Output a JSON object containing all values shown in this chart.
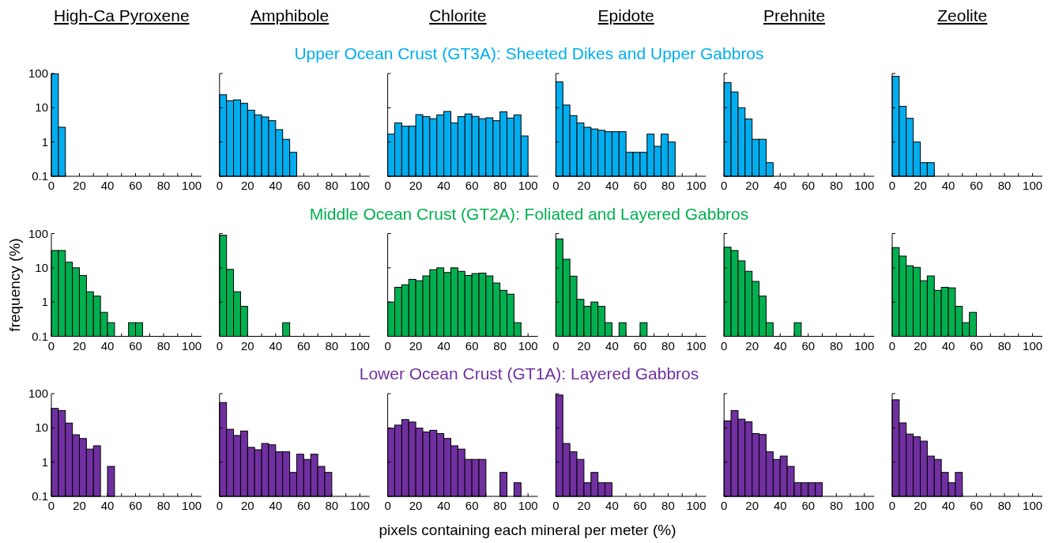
{
  "chart_data": [
    {
      "type": "other",
      "title": "Upper Ocean Crust (GT3A): Sheeted Dikes and Upper Gabbros",
      "color": "#00aeef"
    },
    {
      "type": "histogram",
      "title": "High-Ca Pyroxene",
      "color": "#00aeef",
      "bins": [
        0,
        5,
        10,
        15,
        20,
        25,
        30,
        35,
        40,
        45,
        50,
        55,
        60,
        65,
        70,
        75,
        80,
        85,
        90,
        95,
        100
      ],
      "values": [
        98,
        2.7,
        null,
        null,
        null,
        null,
        null,
        null,
        null,
        null,
        null,
        null,
        null,
        null,
        null,
        null,
        null,
        null,
        null,
        null
      ],
      "xlim": [
        0,
        107
      ],
      "xticks": [
        0,
        {
          "value": 10,
          "label": null
        },
        20,
        {
          "value": 30,
          "label": null
        },
        40,
        {
          "value": 50,
          "label": null
        },
        60,
        {
          "value": 70,
          "label": null
        },
        80,
        {
          "value": 90,
          "label": null
        },
        100
      ],
      "ylim": [
        0.1,
        100
      ],
      "yticks": [
        0.1,
        1,
        10,
        100
      ],
      "log": "y"
    },
    {
      "type": "histogram",
      "title": "Amphibole",
      "color": "#00aeef",
      "bins": [
        0,
        5,
        10,
        15,
        20,
        25,
        30,
        35,
        40,
        45,
        50,
        55,
        60,
        65,
        70,
        75,
        80,
        85,
        90,
        95,
        100
      ],
      "values": [
        24,
        16,
        17,
        13.5,
        8.5,
        6.2,
        5.4,
        4.2,
        2.3,
        1.2,
        0.5,
        null,
        null,
        null,
        null,
        null,
        null,
        null,
        null,
        null
      ],
      "xlim": [
        0,
        107
      ],
      "xticks": [
        0,
        {
          "value": 10,
          "label": null
        },
        20,
        {
          "value": 30,
          "label": null
        },
        40,
        {
          "value": 50,
          "label": null
        },
        60,
        {
          "value": 70,
          "label": null
        },
        80,
        {
          "value": 90,
          "label": null
        },
        100
      ],
      "ylim": [
        0.1,
        100
      ],
      "yticks": [
        0.1,
        1,
        10,
        100
      ],
      "log": "y",
      "tick_labels": "x"
    },
    {
      "type": "histogram",
      "title": "Chlorite",
      "color": "#00aeef",
      "bins": [
        0,
        5,
        10,
        15,
        20,
        25,
        30,
        35,
        40,
        45,
        50,
        55,
        60,
        65,
        70,
        75,
        80,
        85,
        90,
        95,
        100
      ],
      "values": [
        1.7,
        3.6,
        2.9,
        2.9,
        6.3,
        5.5,
        4.8,
        6.2,
        7.8,
        3.6,
        5.5,
        6.6,
        5.6,
        4.8,
        5.1,
        4.2,
        7.6,
        5,
        6.2,
        1.5
      ],
      "xlim": [
        0,
        107
      ],
      "xticks": [
        0,
        {
          "value": 10,
          "label": null
        },
        20,
        {
          "value": 30,
          "label": null
        },
        40,
        {
          "value": 50,
          "label": null
        },
        60,
        {
          "value": 70,
          "label": null
        },
        80,
        {
          "value": 90,
          "label": null
        },
        100
      ],
      "ylim": [
        0.1,
        100
      ],
      "yticks": [
        0.1,
        1,
        10,
        100
      ],
      "log": "y",
      "tick_labels": "x"
    },
    {
      "type": "histogram",
      "title": "Epidote",
      "color": "#00aeef",
      "bins": [
        0,
        5,
        10,
        15,
        20,
        25,
        30,
        35,
        40,
        45,
        50,
        55,
        60,
        65,
        70,
        75,
        80,
        85,
        90,
        95,
        100
      ],
      "values": [
        57,
        12,
        5.9,
        3.6,
        2.7,
        2.4,
        2.2,
        2,
        2,
        2,
        0.5,
        0.5,
        0.5,
        1.7,
        0.75,
        1.7,
        1,
        null,
        null,
        null
      ],
      "xlim": [
        0,
        107
      ],
      "xticks": [
        0,
        {
          "value": 10,
          "label": null
        },
        20,
        {
          "value": 30,
          "label": null
        },
        40,
        {
          "value": 50,
          "label": null
        },
        60,
        {
          "value": 70,
          "label": null
        },
        80,
        {
          "value": 90,
          "label": null
        },
        100
      ],
      "ylim": [
        0.1,
        100
      ],
      "yticks": [
        0.1,
        1,
        10,
        100
      ],
      "log": "y",
      "tick_labels": "x"
    },
    {
      "type": "histogram",
      "title": "Prehnite",
      "color": "#00aeef",
      "bins": [
        0,
        5,
        10,
        15,
        20,
        25,
        30,
        35,
        40,
        45,
        50,
        55,
        60,
        65,
        70,
        75,
        80,
        85,
        90,
        95,
        100
      ],
      "values": [
        54,
        29,
        10,
        4.7,
        1.2,
        1.2,
        0.25,
        null,
        null,
        null,
        null,
        null,
        null,
        null,
        null,
        null,
        null,
        null,
        null,
        null
      ],
      "xlim": [
        0,
        107
      ],
      "xticks": [
        0,
        {
          "value": 10,
          "label": null
        },
        20,
        {
          "value": 30,
          "label": null
        },
        40,
        {
          "value": 50,
          "label": null
        },
        60,
        {
          "value": 70,
          "label": null
        },
        80,
        {
          "value": 90,
          "label": null
        },
        100
      ],
      "ylim": [
        0.1,
        100
      ],
      "yticks": [
        0.1,
        1,
        10,
        100
      ],
      "log": "y",
      "tick_labels": "x"
    },
    {
      "type": "histogram",
      "title": "Zeolite",
      "color": "#00aeef",
      "bins": [
        0,
        5,
        10,
        15,
        20,
        25,
        30,
        35,
        40,
        45,
        50,
        55,
        60,
        65,
        70,
        75,
        80,
        85,
        90,
        95,
        100
      ],
      "values": [
        83,
        11,
        4.9,
        1,
        0.25,
        0.25,
        null,
        null,
        null,
        null,
        null,
        null,
        null,
        null,
        null,
        null,
        null,
        null,
        null,
        null
      ],
      "xlim": [
        0,
        107
      ],
      "xticks": [
        0,
        {
          "value": 10,
          "label": null
        },
        20,
        {
          "value": 30,
          "label": null
        },
        40,
        {
          "value": 50,
          "label": null
        },
        60,
        {
          "value": 70,
          "label": null
        },
        80,
        {
          "value": 90,
          "label": null
        },
        100
      ],
      "ylim": [
        0.1,
        100
      ],
      "yticks": [
        0.1,
        1,
        10,
        100
      ],
      "log": "y",
      "tick_labels": "x"
    },
    {
      "type": "other",
      "title": "Middle Ocean Crust (GT2A): Foliated and Layered Gabbros",
      "color": "#00b050"
    },
    {
      "type": "histogram",
      "ylabel": "frequency (%)",
      "color": "#00b050",
      "bins": [
        0,
        5,
        10,
        15,
        20,
        25,
        30,
        35,
        40,
        45,
        50,
        55,
        60,
        65,
        70,
        75,
        80,
        85,
        90,
        95,
        100
      ],
      "values": [
        32,
        32,
        14.6,
        10,
        6,
        2,
        1.5,
        0.5,
        0.25,
        null,
        null,
        0.25,
        0.25,
        null,
        null,
        null,
        null,
        null,
        null,
        null
      ],
      "xlim": [
        0,
        107
      ],
      "xticks": [
        0,
        {
          "value": 10,
          "label": null
        },
        20,
        {
          "value": 30,
          "label": null
        },
        40,
        {
          "value": 50,
          "label": null
        },
        60,
        {
          "value": 70,
          "label": null
        },
        80,
        {
          "value": 90,
          "label": null
        },
        100
      ],
      "ylim": [
        0.1,
        100
      ],
      "yticks": [
        0.1,
        1,
        10,
        100
      ],
      "log": "y"
    },
    {
      "type": "histogram",
      "color": "#00b050",
      "bins": [
        0,
        5,
        10,
        15,
        20,
        25,
        30,
        35,
        40,
        45,
        50,
        55,
        60,
        65,
        70,
        75,
        80,
        85,
        90,
        95,
        100
      ],
      "values": [
        89,
        9,
        2,
        0.75,
        null,
        null,
        null,
        null,
        null,
        0.25,
        null,
        null,
        null,
        null,
        null,
        null,
        null,
        null,
        null,
        null
      ],
      "xlim": [
        0,
        107
      ],
      "xticks": [
        0,
        {
          "value": 10,
          "label": null
        },
        20,
        {
          "value": 30,
          "label": null
        },
        40,
        {
          "value": 50,
          "label": null
        },
        60,
        {
          "value": 70,
          "label": null
        },
        80,
        {
          "value": 90,
          "label": null
        },
        100
      ],
      "ylim": [
        0.1,
        100
      ],
      "yticks": [
        0.1,
        1,
        10,
        100
      ],
      "log": "y",
      "tick_labels": "x"
    },
    {
      "type": "histogram",
      "color": "#00b050",
      "bins": [
        0,
        5,
        10,
        15,
        20,
        25,
        30,
        35,
        40,
        45,
        50,
        55,
        60,
        65,
        70,
        75,
        80,
        85,
        90,
        95,
        100
      ],
      "values": [
        1,
        2.7,
        3.2,
        4.6,
        4.2,
        5.8,
        8.8,
        10,
        7.3,
        10,
        7.9,
        6,
        6.8,
        7,
        5.8,
        3.6,
        2.2,
        1.7,
        0.25,
        null
      ],
      "xlim": [
        0,
        107
      ],
      "xticks": [
        0,
        {
          "value": 10,
          "label": null
        },
        20,
        {
          "value": 30,
          "label": null
        },
        40,
        {
          "value": 50,
          "label": null
        },
        60,
        {
          "value": 70,
          "label": null
        },
        80,
        {
          "value": 90,
          "label": null
        },
        100
      ],
      "ylim": [
        0.1,
        100
      ],
      "yticks": [
        0.1,
        1,
        10,
        100
      ],
      "log": "y",
      "tick_labels": "x"
    },
    {
      "type": "histogram",
      "color": "#00b050",
      "bins": [
        0,
        5,
        10,
        15,
        20,
        25,
        30,
        35,
        40,
        45,
        50,
        55,
        60,
        65,
        70,
        75,
        80,
        85,
        90,
        95,
        100
      ],
      "values": [
        70,
        17.8,
        5.7,
        1.2,
        0.75,
        1,
        0.75,
        0.25,
        null,
        0.25,
        null,
        null,
        0.25,
        null,
        null,
        null,
        null,
        null,
        null,
        null
      ],
      "xlim": [
        0,
        107
      ],
      "xticks": [
        0,
        {
          "value": 10,
          "label": null
        },
        20,
        {
          "value": 30,
          "label": null
        },
        40,
        {
          "value": 50,
          "label": null
        },
        60,
        {
          "value": 70,
          "label": null
        },
        80,
        {
          "value": 90,
          "label": null
        },
        100
      ],
      "ylim": [
        0.1,
        100
      ],
      "yticks": [
        0.1,
        1,
        10,
        100
      ],
      "log": "y",
      "tick_labels": "x"
    },
    {
      "type": "histogram",
      "color": "#00b050",
      "bins": [
        0,
        5,
        10,
        15,
        20,
        25,
        30,
        35,
        40,
        45,
        50,
        55,
        60,
        65,
        70,
        75,
        80,
        85,
        90,
        95,
        100
      ],
      "values": [
        40,
        32,
        16,
        7.9,
        4,
        1.5,
        0.25,
        null,
        null,
        null,
        0.25,
        null,
        null,
        null,
        null,
        null,
        null,
        null,
        null,
        null
      ],
      "xlim": [
        0,
        107
      ],
      "xticks": [
        0,
        {
          "value": 10,
          "label": null
        },
        20,
        {
          "value": 30,
          "label": null
        },
        40,
        {
          "value": 50,
          "label": null
        },
        60,
        {
          "value": 70,
          "label": null
        },
        80,
        {
          "value": 90,
          "label": null
        },
        100
      ],
      "ylim": [
        0.1,
        100
      ],
      "yticks": [
        0.1,
        1,
        10,
        100
      ],
      "log": "y",
      "tick_labels": "x"
    },
    {
      "type": "histogram",
      "color": "#00b050",
      "bins": [
        0,
        5,
        10,
        15,
        20,
        25,
        30,
        35,
        40,
        45,
        50,
        55,
        60,
        65,
        70,
        75,
        80,
        85,
        90,
        95,
        100
      ],
      "values": [
        39,
        22,
        11.5,
        10.3,
        4.2,
        5.8,
        2.2,
        2.7,
        2.6,
        0.75,
        0.25,
        0.5,
        null,
        null,
        null,
        null,
        null,
        null,
        null,
        null
      ],
      "xlim": [
        0,
        107
      ],
      "xticks": [
        0,
        {
          "value": 10,
          "label": null
        },
        20,
        {
          "value": 30,
          "label": null
        },
        40,
        {
          "value": 50,
          "label": null
        },
        60,
        {
          "value": 70,
          "label": null
        },
        80,
        {
          "value": 90,
          "label": null
        },
        100
      ],
      "ylim": [
        0.1,
        100
      ],
      "yticks": [
        0.1,
        1,
        10,
        100
      ],
      "log": "y",
      "tick_labels": "x"
    },
    {
      "type": "other",
      "title": "Lower Ocean Crust (GT1A): Layered Gabbros",
      "color": "#7030a0"
    },
    {
      "type": "histogram",
      "color": "#7030a0",
      "bins": [
        0,
        5,
        10,
        15,
        20,
        25,
        30,
        35,
        40,
        45,
        50,
        55,
        60,
        65,
        70,
        75,
        80,
        85,
        90,
        95,
        100
      ],
      "values": [
        37,
        32,
        13.8,
        6.3,
        4.9,
        2.4,
        3,
        null,
        0.75,
        null,
        null,
        null,
        null,
        null,
        null,
        null,
        null,
        null,
        null,
        null
      ],
      "xlim": [
        0,
        107
      ],
      "xticks": [
        0,
        {
          "value": 10,
          "label": null
        },
        20,
        {
          "value": 30,
          "label": null
        },
        40,
        {
          "value": 50,
          "label": null
        },
        60,
        {
          "value": 70,
          "label": null
        },
        80,
        {
          "value": 90,
          "label": null
        },
        100
      ],
      "ylim": [
        0.1,
        100
      ],
      "yticks": [
        0.1,
        1,
        10,
        100
      ],
      "log": "y"
    },
    {
      "type": "histogram",
      "color": "#7030a0",
      "bins": [
        0,
        5,
        10,
        15,
        20,
        25,
        30,
        35,
        40,
        45,
        50,
        55,
        60,
        65,
        70,
        75,
        80,
        85,
        90,
        95,
        100
      ],
      "values": [
        55,
        9.1,
        6,
        8.1,
        2.7,
        2.3,
        3.5,
        3.2,
        2,
        2,
        0.5,
        1.7,
        1.2,
        1.7,
        0.75,
        0.5,
        null,
        null,
        null,
        null
      ],
      "xlim": [
        0,
        107
      ],
      "xticks": [
        0,
        {
          "value": 10,
          "label": null
        },
        20,
        {
          "value": 30,
          "label": null
        },
        40,
        {
          "value": 50,
          "label": null
        },
        60,
        {
          "value": 70,
          "label": null
        },
        80,
        {
          "value": 90,
          "label": null
        },
        100
      ],
      "ylim": [
        0.1,
        100
      ],
      "yticks": [
        0.1,
        1,
        10,
        100
      ],
      "log": "y",
      "tick_labels": "x"
    },
    {
      "type": "histogram",
      "xlabel": "pixels containing each mineral per meter (%)",
      "color": "#7030a0",
      "bins": [
        0,
        5,
        10,
        15,
        20,
        25,
        30,
        35,
        40,
        45,
        50,
        55,
        60,
        65,
        70,
        75,
        80,
        85,
        90,
        95,
        100
      ],
      "values": [
        9.8,
        12,
        17.5,
        14.8,
        9.8,
        7.6,
        8.5,
        6.8,
        4.9,
        3,
        2.4,
        1.2,
        1.2,
        1.2,
        null,
        null,
        0.5,
        null,
        0.25,
        null
      ],
      "xlim": [
        0,
        107
      ],
      "xticks": [
        0,
        {
          "value": 10,
          "label": null
        },
        20,
        {
          "value": 30,
          "label": null
        },
        40,
        {
          "value": 50,
          "label": null
        },
        60,
        {
          "value": 70,
          "label": null
        },
        80,
        {
          "value": 90,
          "label": null
        },
        100
      ],
      "ylim": [
        0.1,
        100
      ],
      "yticks": [
        0.1,
        1,
        10,
        100
      ],
      "log": "y",
      "tick_labels": "x"
    },
    {
      "type": "histogram",
      "color": "#7030a0",
      "bins": [
        0,
        5,
        10,
        15,
        20,
        25,
        30,
        35,
        40,
        45,
        50,
        55,
        60,
        65,
        70,
        75,
        80,
        85,
        90,
        95,
        100
      ],
      "values": [
        91,
        3.5,
        2,
        1.2,
        0.25,
        0.5,
        0.25,
        0.25,
        null,
        null,
        null,
        null,
        null,
        null,
        null,
        null,
        null,
        null,
        null,
        null
      ],
      "xlim": [
        0,
        107
      ],
      "xticks": [
        0,
        {
          "value": 10,
          "label": null
        },
        20,
        {
          "value": 30,
          "label": null
        },
        40,
        {
          "value": 50,
          "label": null
        },
        60,
        {
          "value": 70,
          "label": null
        },
        80,
        {
          "value": 90,
          "label": null
        },
        100
      ],
      "ylim": [
        0.1,
        100
      ],
      "yticks": [
        0.1,
        1,
        10,
        100
      ],
      "log": "y",
      "tick_labels": "x"
    },
    {
      "type": "histogram",
      "color": "#7030a0",
      "bins": [
        0,
        5,
        10,
        15,
        20,
        25,
        30,
        35,
        40,
        45,
        50,
        55,
        60,
        65,
        70,
        75,
        80,
        85,
        90,
        95,
        100
      ],
      "values": [
        16,
        32,
        18,
        15,
        6.8,
        6.4,
        2,
        1.2,
        1.5,
        0.75,
        0.25,
        0.25,
        0.25,
        0.25,
        null,
        null,
        null,
        null,
        null,
        null
      ],
      "xlim": [
        0,
        107
      ],
      "xticks": [
        0,
        {
          "value": 10,
          "label": null
        },
        20,
        {
          "value": 30,
          "label": null
        },
        40,
        {
          "value": 50,
          "label": null
        },
        60,
        {
          "value": 70,
          "label": null
        },
        80,
        {
          "value": 90,
          "label": null
        },
        100
      ],
      "ylim": [
        0.1,
        100
      ],
      "yticks": [
        0.1,
        1,
        10,
        100
      ],
      "log": "y",
      "tick_labels": "x"
    },
    {
      "type": "histogram",
      "color": "#7030a0",
      "bins": [
        0,
        5,
        10,
        15,
        20,
        25,
        30,
        35,
        40,
        45,
        50,
        55,
        60,
        65,
        70,
        75,
        80,
        85,
        90,
        95,
        100
      ],
      "values": [
        66,
        14,
        6.6,
        5.5,
        4.1,
        1.5,
        1.2,
        0.5,
        0.25,
        0.5,
        null,
        null,
        null,
        null,
        null,
        null,
        null,
        null,
        null,
        null
      ],
      "xlim": [
        0,
        107
      ],
      "xticks": [
        0,
        {
          "value": 10,
          "label": null
        },
        20,
        {
          "value": 30,
          "label": null
        },
        40,
        {
          "value": 50,
          "label": null
        },
        60,
        {
          "value": 70,
          "label": null
        },
        80,
        {
          "value": 90,
          "label": null
        },
        100
      ],
      "ylim": [
        0.1,
        100
      ],
      "yticks": [
        0.1,
        1,
        10,
        100
      ],
      "log": "y",
      "tick_labels": "x"
    }
  ]
}
